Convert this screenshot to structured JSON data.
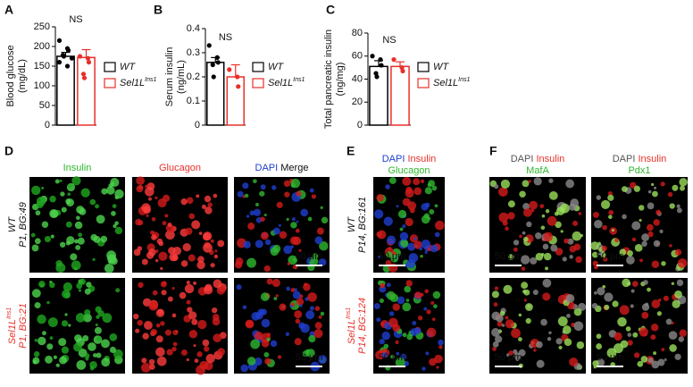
{
  "chart_data": [
    {
      "type": "bar",
      "panel": "A",
      "ylabel": [
        "Blood glucose",
        "(mg/dL)"
      ],
      "annotation": "NS",
      "ylim": [
        0,
        250
      ],
      "yticks": [
        0,
        50,
        100,
        150,
        200,
        250
      ],
      "series": [
        {
          "name": "WT",
          "color": "#000000",
          "fill": "#ffffff",
          "values": [
            175
          ],
          "errors": [
            10
          ],
          "points": [
            215,
            195,
            190,
            178,
            175,
            170,
            160,
            150
          ]
        },
        {
          "name": "Sel1L",
          "name_sup": "Ins1",
          "color": "#e8302a",
          "fill": "#ffffff",
          "values": [
            172
          ],
          "errors": [
            20
          ],
          "points": [
            175,
            170,
            160,
            130,
            120
          ]
        }
      ]
    },
    {
      "type": "bar",
      "panel": "B",
      "ylabel": [
        "Serum insulin",
        "(ng/mL)"
      ],
      "annotation": "NS",
      "ylim": [
        0,
        0.4
      ],
      "yticks": [
        0,
        0.1,
        0.2,
        0.3,
        0.4
      ],
      "series": [
        {
          "name": "WT",
          "color": "#000000",
          "fill": "#ffffff",
          "values": [
            0.26
          ],
          "errors": [
            0.02
          ],
          "points": [
            0.33,
            0.28,
            0.26,
            0.25,
            0.2
          ]
        },
        {
          "name": "Sel1L",
          "name_sup": "Ins1",
          "color": "#e8302a",
          "fill": "#ffffff",
          "values": [
            0.2
          ],
          "errors": [
            0.05
          ],
          "points": [
            0.23,
            0.2,
            0.16
          ]
        }
      ]
    },
    {
      "type": "bar",
      "panel": "C",
      "ylabel": [
        "Total pancreatic insulin",
        "(ng/mg)"
      ],
      "annotation": "NS",
      "ylim": [
        0,
        80
      ],
      "yticks": [
        0,
        20,
        40,
        60,
        80
      ],
      "series": [
        {
          "name": "WT",
          "color": "#000000",
          "fill": "#ffffff",
          "values": [
            51
          ],
          "errors": [
            5
          ],
          "points": [
            60,
            57,
            52,
            45,
            42
          ]
        },
        {
          "name": "Sel1L",
          "name_sup": "Ins1",
          "color": "#e8302a",
          "fill": "#ffffff",
          "values": [
            51
          ],
          "errors": [
            4
          ],
          "points": [
            57,
            50,
            47
          ]
        }
      ]
    }
  ],
  "panels": [
    {
      "label": "D",
      "scale_bar": "50 μm",
      "columns": [
        [
          [
            {
              "text": "Insulin",
              "color": "#2eb82e"
            }
          ]
        ],
        [
          [
            {
              "text": "Glucagon",
              "color": "#e8302a"
            }
          ]
        ],
        [
          [
            {
              "text": "DAPI ",
              "color": "#1f3fd0"
            },
            {
              "text": "Merge",
              "color": "#111111"
            }
          ]
        ]
      ],
      "rows": [
        [
          [
            {
              "text": "WT",
              "color": "#111111"
            }
          ],
          [
            {
              "text": "P1, BG:49",
              "color": "#111111"
            }
          ]
        ],
        [
          [
            {
              "text": "Sel1L",
              "color": "#e8302a"
            },
            {
              "text": "Ins1",
              "color": "#e8302a",
              "sup": true
            }
          ],
          [
            {
              "text": "P1, BG:21",
              "color": "#e8302a"
            }
          ]
        ]
      ]
    },
    {
      "label": "E",
      "scale_bar": "50 μm",
      "columns": [
        [
          [
            {
              "text": "DAPI ",
              "color": "#1f3fd0"
            },
            {
              "text": "Insulin",
              "color": "#e8302a"
            }
          ],
          [
            {
              "text": "Glucagon",
              "color": "#2eb82e"
            }
          ]
        ]
      ],
      "rows": [
        [
          [
            {
              "text": "WT",
              "color": "#111111"
            }
          ],
          [
            {
              "text": "P14, BG:161",
              "color": "#111111"
            }
          ]
        ],
        [
          [
            {
              "text": "Sel1L",
              "color": "#e8302a"
            },
            {
              "text": "Ins1",
              "color": "#e8302a",
              "sup": true
            }
          ],
          [
            {
              "text": "P14, BG:124",
              "color": "#e8302a"
            }
          ]
        ]
      ]
    },
    {
      "label": "F",
      "scale_bar": "50 μm",
      "columns": [
        [
          [
            {
              "text": "DAPI ",
              "color": "#555555"
            },
            {
              "text": "Insulin",
              "color": "#e8302a"
            }
          ],
          [
            {
              "text": "MafA",
              "color": "#2eb82e"
            }
          ]
        ],
        [
          [
            {
              "text": "DAPI ",
              "color": "#555555"
            },
            {
              "text": "Insulin",
              "color": "#e8302a"
            }
          ],
          [
            {
              "text": "Pdx1",
              "color": "#2eb82e"
            }
          ]
        ]
      ],
      "rows": [
        [],
        []
      ]
    }
  ]
}
